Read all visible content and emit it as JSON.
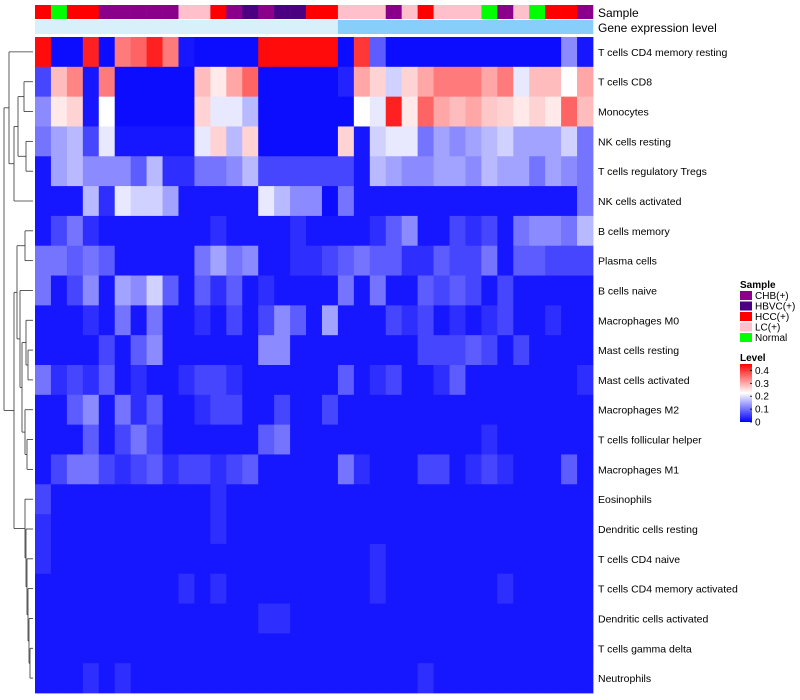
{
  "chart_data": {
    "type": "heatmap",
    "annotation_labels": [
      "Sample",
      "Gene expression level"
    ],
    "legend": {
      "sample_title": "Sample",
      "groups": [
        {
          "label": "CHB(+)",
          "color": "#8B008B"
        },
        {
          "label": "HBVC(+)",
          "color": "#4B0082"
        },
        {
          "label": "HCC(+)",
          "color": "#FF0000"
        },
        {
          "label": "LC(+)",
          "color": "#FFC0CB"
        },
        {
          "label": "Normal",
          "color": "#00FF00"
        }
      ],
      "level_title": "Level",
      "level_ticks": [
        "0.4",
        "0.3",
        "0.2",
        "0.1",
        "0"
      ],
      "level_values": [
        0.4,
        0.3,
        0.2,
        0.1,
        0
      ],
      "scale": {
        "min": 0,
        "max": 0.45,
        "low_color": "#0000FF",
        "mid_color": "#FFFFFF",
        "high_color": "#FF0000",
        "mid_value": 0.22
      }
    },
    "sample_groups": [
      "HCC(+)",
      "Normal",
      "HCC(+)",
      "HCC(+)",
      "CHB(+)",
      "CHB(+)",
      "CHB(+)",
      "CHB(+)",
      "CHB(+)",
      "LC(+)",
      "LC(+)",
      "HCC(+)",
      "CHB(+)",
      "HBVC(+)",
      "CHB(+)",
      "HBVC(+)",
      "HBVC(+)",
      "HCC(+)",
      "HCC(+)",
      "LC(+)",
      "LC(+)",
      "LC(+)",
      "CHB(+)",
      "LC(+)",
      "HCC(+)",
      "LC(+)",
      "LC(+)",
      "LC(+)",
      "Normal",
      "CHB(+)",
      "LC(+)",
      "Normal",
      "HCC(+)",
      "HCC(+)",
      "CHB(+)"
    ],
    "expression_groups": [
      "high",
      "high",
      "high",
      "high",
      "high",
      "high",
      "high",
      "high",
      "high",
      "high",
      "high",
      "high",
      "high",
      "high",
      "high",
      "high",
      "high",
      "high",
      "high",
      "low",
      "low",
      "low",
      "low",
      "low",
      "low",
      "low",
      "low",
      "low",
      "low",
      "low",
      "low",
      "low",
      "low",
      "low",
      "low"
    ],
    "expression_colors": {
      "high": "#D8F0FA",
      "low": "#87CEFA"
    },
    "rows": [
      {
        "name": "T cells CD4 memory resting",
        "values": [
          0.44,
          0.01,
          0.01,
          0.42,
          0.01,
          0.34,
          0.36,
          0.42,
          0.34,
          0.02,
          0.01,
          0.01,
          0.01,
          0.01,
          0.44,
          0.44,
          0.44,
          0.44,
          0.44,
          0.01,
          0.4,
          0.08,
          0.01,
          0.01,
          0.01,
          0.01,
          0.01,
          0.01,
          0.01,
          0.01,
          0.01,
          0.01,
          0.01,
          0.12,
          0.02
        ]
      },
      {
        "name": "T cells CD8",
        "values": [
          0.06,
          0.28,
          0.33,
          0.02,
          0.34,
          0.01,
          0.01,
          0.01,
          0.01,
          0.01,
          0.28,
          0.24,
          0.3,
          0.36,
          0.01,
          0.01,
          0.01,
          0.01,
          0.01,
          0.03,
          0.3,
          0.26,
          0.18,
          0.26,
          0.3,
          0.34,
          0.34,
          0.34,
          0.3,
          0.34,
          0.2,
          0.28,
          0.28,
          0.22,
          0.3
        ]
      },
      {
        "name": "Monocytes",
        "values": [
          0.12,
          0.24,
          0.26,
          0.02,
          0.22,
          0.01,
          0.01,
          0.01,
          0.01,
          0.01,
          0.26,
          0.2,
          0.2,
          0.16,
          0.01,
          0.01,
          0.01,
          0.01,
          0.01,
          0.01,
          0.22,
          0.2,
          0.42,
          0.24,
          0.36,
          0.3,
          0.28,
          0.3,
          0.27,
          0.26,
          0.24,
          0.26,
          0.24,
          0.36,
          0.28
        ]
      },
      {
        "name": "NK cells resting",
        "values": [
          0.1,
          0.14,
          0.16,
          0.06,
          0.2,
          0.02,
          0.02,
          0.02,
          0.02,
          0.02,
          0.2,
          0.26,
          0.16,
          0.26,
          0.01,
          0.01,
          0.01,
          0.01,
          0.01,
          0.26,
          0.02,
          0.18,
          0.2,
          0.2,
          0.1,
          0.14,
          0.12,
          0.14,
          0.16,
          0.18,
          0.14,
          0.14,
          0.14,
          0.18,
          0.1
        ]
      },
      {
        "name": "T cells regulatory  Tregs",
        "values": [
          0.02,
          0.14,
          0.16,
          0.12,
          0.12,
          0.12,
          0.08,
          0.16,
          0.04,
          0.04,
          0.1,
          0.1,
          0.12,
          0.16,
          0.06,
          0.06,
          0.06,
          0.06,
          0.06,
          0.06,
          0.02,
          0.16,
          0.14,
          0.12,
          0.12,
          0.14,
          0.14,
          0.12,
          0.16,
          0.14,
          0.14,
          0.1,
          0.14,
          0.12,
          0.1
        ]
      },
      {
        "name": "NK cells activated",
        "values": [
          0.02,
          0.02,
          0.02,
          0.16,
          0.04,
          0.2,
          0.18,
          0.18,
          0.14,
          0.02,
          0.02,
          0.02,
          0.02,
          0.02,
          0.2,
          0.16,
          0.12,
          0.12,
          0.01,
          0.1,
          0.02,
          0.02,
          0.02,
          0.02,
          0.02,
          0.02,
          0.02,
          0.02,
          0.02,
          0.02,
          0.02,
          0.02,
          0.02,
          0.02,
          0.1
        ]
      },
      {
        "name": "B cells memory",
        "values": [
          0.02,
          0.06,
          0.1,
          0.04,
          0.02,
          0.02,
          0.02,
          0.02,
          0.02,
          0.02,
          0.02,
          0.04,
          0.02,
          0.02,
          0.02,
          0.02,
          0.04,
          0.02,
          0.02,
          0.02,
          0.02,
          0.04,
          0.08,
          0.12,
          0.02,
          0.02,
          0.06,
          0.04,
          0.06,
          0.02,
          0.1,
          0.12,
          0.12,
          0.1,
          0.16
        ]
      },
      {
        "name": "Plasma cells",
        "values": [
          0.1,
          0.1,
          0.08,
          0.1,
          0.08,
          0.02,
          0.02,
          0.02,
          0.02,
          0.02,
          0.1,
          0.14,
          0.1,
          0.12,
          0.02,
          0.02,
          0.04,
          0.04,
          0.06,
          0.08,
          0.1,
          0.08,
          0.08,
          0.04,
          0.04,
          0.08,
          0.06,
          0.06,
          0.1,
          0.02,
          0.08,
          0.08,
          0.06,
          0.06,
          0.06
        ]
      },
      {
        "name": "B cells naive",
        "values": [
          0.1,
          0.02,
          0.06,
          0.12,
          0.02,
          0.14,
          0.12,
          0.18,
          0.08,
          0.02,
          0.08,
          0.04,
          0.08,
          0.02,
          0.04,
          0.02,
          0.02,
          0.02,
          0.02,
          0.1,
          0.02,
          0.1,
          0.02,
          0.02,
          0.08,
          0.06,
          0.08,
          0.06,
          0.02,
          0.06,
          0.02,
          0.02,
          0.02,
          0.02,
          0.02
        ]
      },
      {
        "name": "Macrophages M0",
        "values": [
          0.02,
          0.02,
          0.02,
          0.04,
          0.02,
          0.1,
          0.02,
          0.1,
          0.02,
          0.02,
          0.04,
          0.02,
          0.06,
          0.02,
          0.06,
          0.12,
          0.08,
          0.02,
          0.14,
          0.02,
          0.02,
          0.02,
          0.06,
          0.04,
          0.06,
          0.02,
          0.04,
          0.02,
          0.04,
          0.06,
          0.02,
          0.02,
          0.04,
          0.02,
          0.02
        ]
      },
      {
        "name": "Mast cells resting",
        "values": [
          0.02,
          0.02,
          0.02,
          0.02,
          0.06,
          0.02,
          0.08,
          0.12,
          0.02,
          0.02,
          0.02,
          0.02,
          0.02,
          0.02,
          0.12,
          0.12,
          0.02,
          0.02,
          0.02,
          0.02,
          0.02,
          0.02,
          0.02,
          0.02,
          0.06,
          0.06,
          0.06,
          0.08,
          0.06,
          0.02,
          0.06,
          0.02,
          0.02,
          0.02,
          0.02
        ]
      },
      {
        "name": "Mast cells activated",
        "values": [
          0.1,
          0.04,
          0.06,
          0.04,
          0.08,
          0.02,
          0.04,
          0.02,
          0.02,
          0.04,
          0.06,
          0.06,
          0.04,
          0.02,
          0.02,
          0.02,
          0.02,
          0.02,
          0.02,
          0.08,
          0.02,
          0.04,
          0.06,
          0.02,
          0.02,
          0.04,
          0.08,
          0.02,
          0.02,
          0.02,
          0.02,
          0.02,
          0.02,
          0.02,
          0.04
        ]
      },
      {
        "name": "Macrophages M2",
        "values": [
          0.02,
          0.02,
          0.08,
          0.12,
          0.02,
          0.1,
          0.04,
          0.08,
          0.02,
          0.02,
          0.04,
          0.06,
          0.06,
          0.02,
          0.02,
          0.06,
          0.02,
          0.02,
          0.06,
          0.02,
          0.02,
          0.02,
          0.02,
          0.02,
          0.02,
          0.02,
          0.02,
          0.02,
          0.02,
          0.02,
          0.02,
          0.02,
          0.02,
          0.02,
          0.02
        ]
      },
      {
        "name": "T cells follicular helper",
        "values": [
          0.02,
          0.02,
          0.02,
          0.08,
          0.02,
          0.06,
          0.1,
          0.06,
          0.02,
          0.02,
          0.02,
          0.02,
          0.02,
          0.02,
          0.08,
          0.1,
          0.02,
          0.02,
          0.02,
          0.02,
          0.02,
          0.02,
          0.02,
          0.02,
          0.02,
          0.02,
          0.02,
          0.02,
          0.04,
          0.02,
          0.02,
          0.02,
          0.02,
          0.02,
          0.02
        ]
      },
      {
        "name": "Macrophages M1",
        "values": [
          0.02,
          0.06,
          0.1,
          0.1,
          0.06,
          0.04,
          0.06,
          0.08,
          0.04,
          0.06,
          0.06,
          0.04,
          0.06,
          0.08,
          0.02,
          0.02,
          0.02,
          0.02,
          0.02,
          0.1,
          0.04,
          0.02,
          0.02,
          0.02,
          0.06,
          0.06,
          0.02,
          0.04,
          0.06,
          0.04,
          0.02,
          0.02,
          0.02,
          0.08,
          0.02
        ]
      },
      {
        "name": "Eosinophils",
        "values": [
          0.06,
          0.02,
          0.02,
          0.02,
          0.02,
          0.02,
          0.02,
          0.02,
          0.02,
          0.02,
          0.02,
          0.04,
          0.02,
          0.02,
          0.02,
          0.02,
          0.02,
          0.02,
          0.02,
          0.02,
          0.02,
          0.02,
          0.02,
          0.02,
          0.02,
          0.02,
          0.02,
          0.02,
          0.02,
          0.02,
          0.02,
          0.02,
          0.02,
          0.02,
          0.02
        ]
      },
      {
        "name": "Dendritic cells resting",
        "values": [
          0.04,
          0.02,
          0.02,
          0.02,
          0.02,
          0.02,
          0.02,
          0.02,
          0.02,
          0.02,
          0.02,
          0.04,
          0.02,
          0.02,
          0.02,
          0.02,
          0.02,
          0.02,
          0.02,
          0.02,
          0.02,
          0.02,
          0.02,
          0.02,
          0.02,
          0.02,
          0.02,
          0.02,
          0.02,
          0.02,
          0.02,
          0.02,
          0.02,
          0.02,
          0.02
        ]
      },
      {
        "name": "T cells CD4 naive",
        "values": [
          0.04,
          0.02,
          0.02,
          0.02,
          0.02,
          0.02,
          0.02,
          0.02,
          0.02,
          0.02,
          0.02,
          0.02,
          0.02,
          0.02,
          0.02,
          0.02,
          0.02,
          0.02,
          0.02,
          0.02,
          0.02,
          0.04,
          0.02,
          0.02,
          0.02,
          0.02,
          0.02,
          0.02,
          0.02,
          0.02,
          0.02,
          0.02,
          0.02,
          0.02,
          0.02
        ]
      },
      {
        "name": "T cells CD4 memory activated",
        "values": [
          0.02,
          0.02,
          0.02,
          0.02,
          0.02,
          0.02,
          0.02,
          0.02,
          0.02,
          0.04,
          0.02,
          0.04,
          0.02,
          0.02,
          0.02,
          0.02,
          0.02,
          0.02,
          0.02,
          0.02,
          0.02,
          0.04,
          0.02,
          0.02,
          0.02,
          0.02,
          0.02,
          0.02,
          0.02,
          0.04,
          0.02,
          0.02,
          0.02,
          0.02,
          0.02
        ]
      },
      {
        "name": "Dendritic cells activated",
        "values": [
          0.02,
          0.02,
          0.02,
          0.02,
          0.02,
          0.02,
          0.02,
          0.02,
          0.02,
          0.02,
          0.02,
          0.02,
          0.02,
          0.02,
          0.04,
          0.04,
          0.02,
          0.02,
          0.02,
          0.02,
          0.02,
          0.02,
          0.02,
          0.02,
          0.02,
          0.02,
          0.02,
          0.02,
          0.02,
          0.02,
          0.02,
          0.02,
          0.02,
          0.02,
          0.02
        ]
      },
      {
        "name": "T cells gamma delta",
        "values": [
          0.02,
          0.02,
          0.02,
          0.02,
          0.02,
          0.02,
          0.02,
          0.02,
          0.02,
          0.02,
          0.02,
          0.02,
          0.02,
          0.02,
          0.02,
          0.02,
          0.02,
          0.02,
          0.02,
          0.02,
          0.02,
          0.02,
          0.02,
          0.02,
          0.02,
          0.02,
          0.02,
          0.02,
          0.02,
          0.02,
          0.02,
          0.02,
          0.02,
          0.02,
          0.02
        ]
      },
      {
        "name": "Neutrophils",
        "values": [
          0.02,
          0.02,
          0.02,
          0.04,
          0.02,
          0.04,
          0.02,
          0.02,
          0.02,
          0.02,
          0.02,
          0.02,
          0.02,
          0.02,
          0.02,
          0.02,
          0.02,
          0.02,
          0.02,
          0.02,
          0.02,
          0.02,
          0.02,
          0.02,
          0.04,
          0.02,
          0.02,
          0.02,
          0.02,
          0.02,
          0.02,
          0.02,
          0.02,
          0.02,
          0.02
        ]
      }
    ]
  }
}
